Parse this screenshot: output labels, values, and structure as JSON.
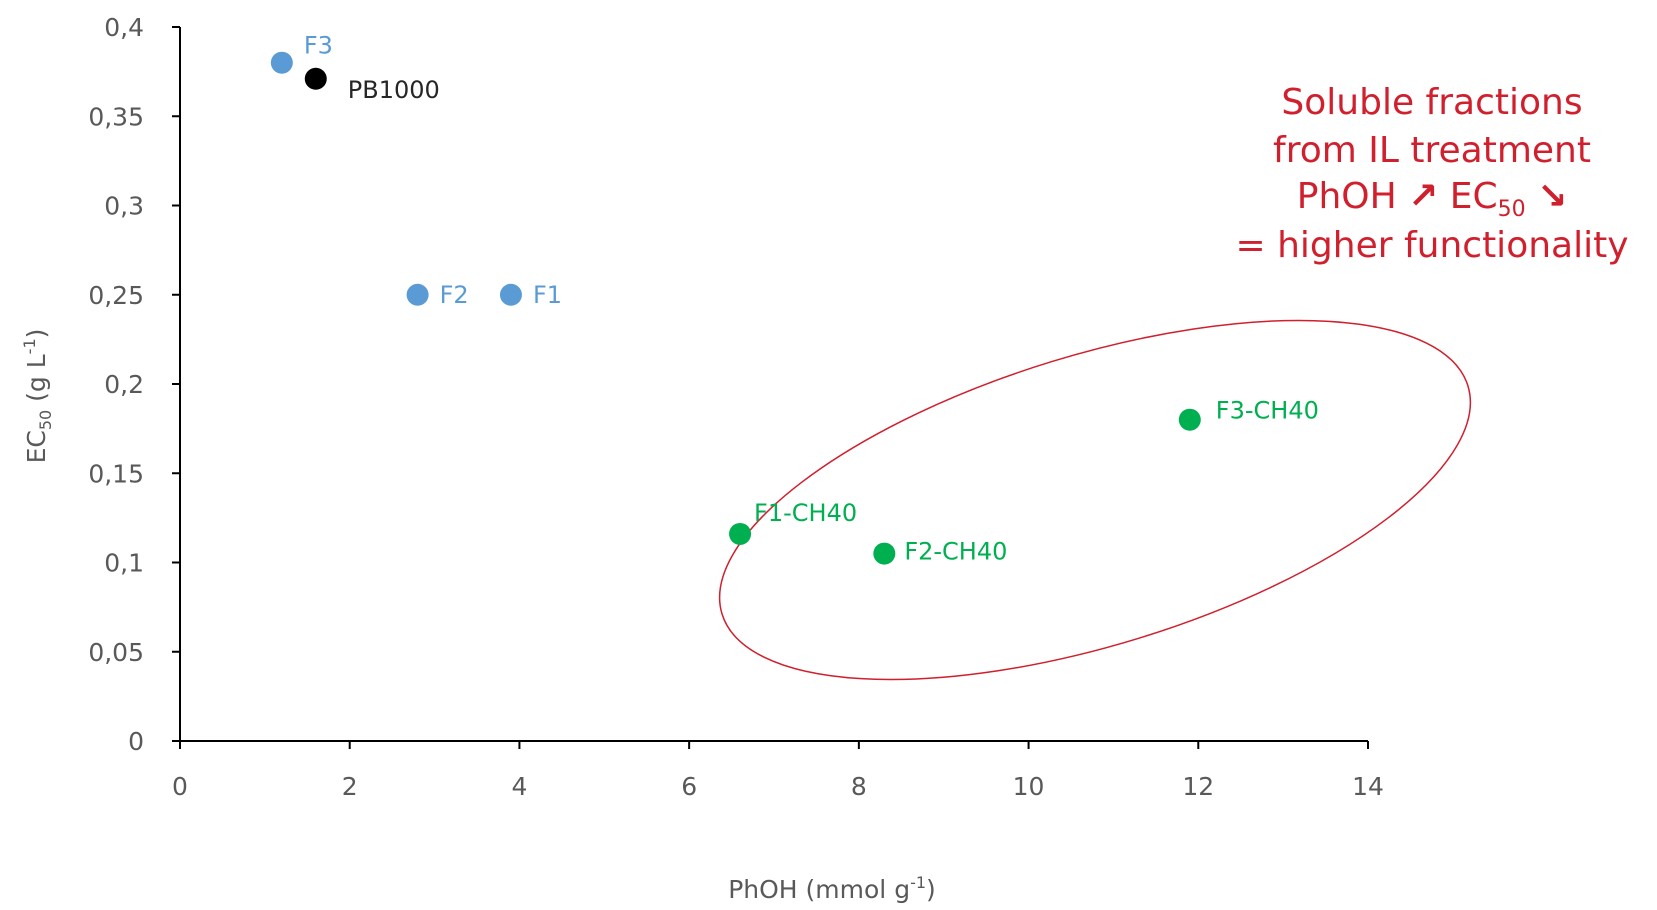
{
  "chart_data": {
    "type": "scatter",
    "xlabel": {
      "main": "PhOH (mmol g",
      "sup": "-1",
      "close": ")"
    },
    "ylabel": {
      "main": "EC",
      "sub": "50",
      "rest": " (g L",
      "sup": "-1",
      "close": ")"
    },
    "xlim": [
      0,
      14
    ],
    "ylim": [
      0,
      0.4
    ],
    "x_ticks": [
      {
        "value": 0,
        "label": "0"
      },
      {
        "value": 2,
        "label": "2"
      },
      {
        "value": 4,
        "label": "4"
      },
      {
        "value": 6,
        "label": "6"
      },
      {
        "value": 8,
        "label": "8"
      },
      {
        "value": 10,
        "label": "10"
      },
      {
        "value": 12,
        "label": "12"
      },
      {
        "value": 14,
        "label": "14"
      }
    ],
    "y_ticks": [
      {
        "value": 0,
        "label": "0"
      },
      {
        "value": 0.05,
        "label": "0,05"
      },
      {
        "value": 0.1,
        "label": "0,1"
      },
      {
        "value": 0.15,
        "label": "0,15"
      },
      {
        "value": 0.2,
        "label": "0,2"
      },
      {
        "value": 0.25,
        "label": "0,25"
      },
      {
        "value": 0.3,
        "label": "0,3"
      },
      {
        "value": 0.35,
        "label": "0,35"
      },
      {
        "value": 0.4,
        "label": "0,4"
      }
    ],
    "grid": false,
    "points": [
      {
        "label": "F3",
        "x": 1.2,
        "y": 0.38,
        "color": "#5b9bd5"
      },
      {
        "label": "PB1000",
        "x": 1.6,
        "y": 0.371,
        "color": "#000000"
      },
      {
        "label": "F2",
        "x": 2.8,
        "y": 0.25,
        "color": "#5b9bd5"
      },
      {
        "label": "F1",
        "x": 3.9,
        "y": 0.25,
        "color": "#5b9bd5"
      },
      {
        "label": "F1-CH40",
        "x": 6.6,
        "y": 0.116,
        "color": "#00b050"
      },
      {
        "label": "F2-CH40",
        "x": 8.3,
        "y": 0.105,
        "color": "#00b050"
      },
      {
        "label": "F3-CH40",
        "x": 11.9,
        "y": 0.18,
        "color": "#00b050"
      }
    ],
    "annotation": {
      "color": "#d0202e",
      "line1": "Soluble fractions",
      "line2": "from IL treatment",
      "line3_a": "PhOH",
      "line3_arrow_up": "↗",
      "line3_b": "EC",
      "line3_sub": "50",
      "line3_arrow_down": "↘",
      "line4": "= higher functionality"
    },
    "highlight_color": "#d0202e"
  }
}
